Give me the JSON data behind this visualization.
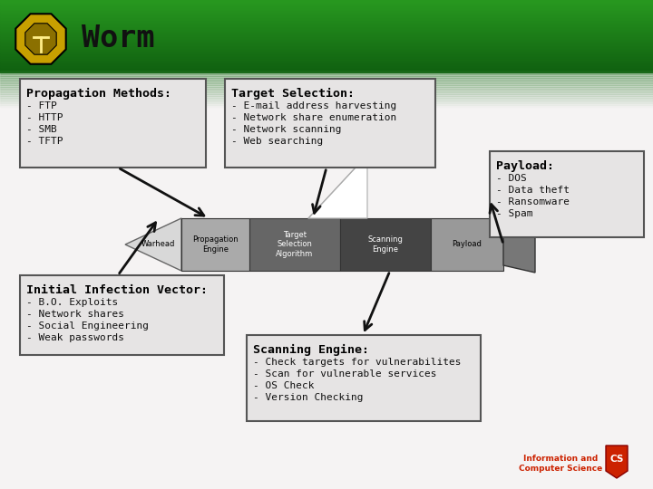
{
  "title": "Worm",
  "slide_bg_color": "#f0eeee",
  "propagation_title": "Propagation Methods:",
  "propagation_items": [
    "- FTP",
    "- HTTP",
    "- SMB",
    "- TFTP"
  ],
  "target_title": "Target Selection:",
  "target_items": [
    "- E-mail address harvesting",
    "- Network share enumeration",
    "- Network scanning",
    "- Web searching"
  ],
  "payload_title": "Payload:",
  "payload_items": [
    "- DOS",
    "- Data theft",
    "- Ransomware",
    "- Spam"
  ],
  "initial_title": "Initial Infection Vector:",
  "initial_items": [
    "- B.O. Exploits",
    "- Network shares",
    "- Social Engineering",
    "- Weak passwords"
  ],
  "scanning_title": "Scanning Engine:",
  "scanning_items": [
    "- Check targets for vulnerabilites",
    "- Scan for vulnerable services",
    "- OS Check",
    "- Version Checking"
  ],
  "worm_labels": [
    "Warhead",
    "Propagation\nEngine",
    "Target\nSelection\nAlgorithm",
    "Scanning\nEngine",
    "Payload"
  ],
  "worm_colors": [
    "#d4d4d4",
    "#aaaaaa",
    "#666666",
    "#444444",
    "#999999"
  ],
  "worm_text_colors": [
    "#000000",
    "#000000",
    "#ffffff",
    "#ffffff",
    "#000000"
  ]
}
